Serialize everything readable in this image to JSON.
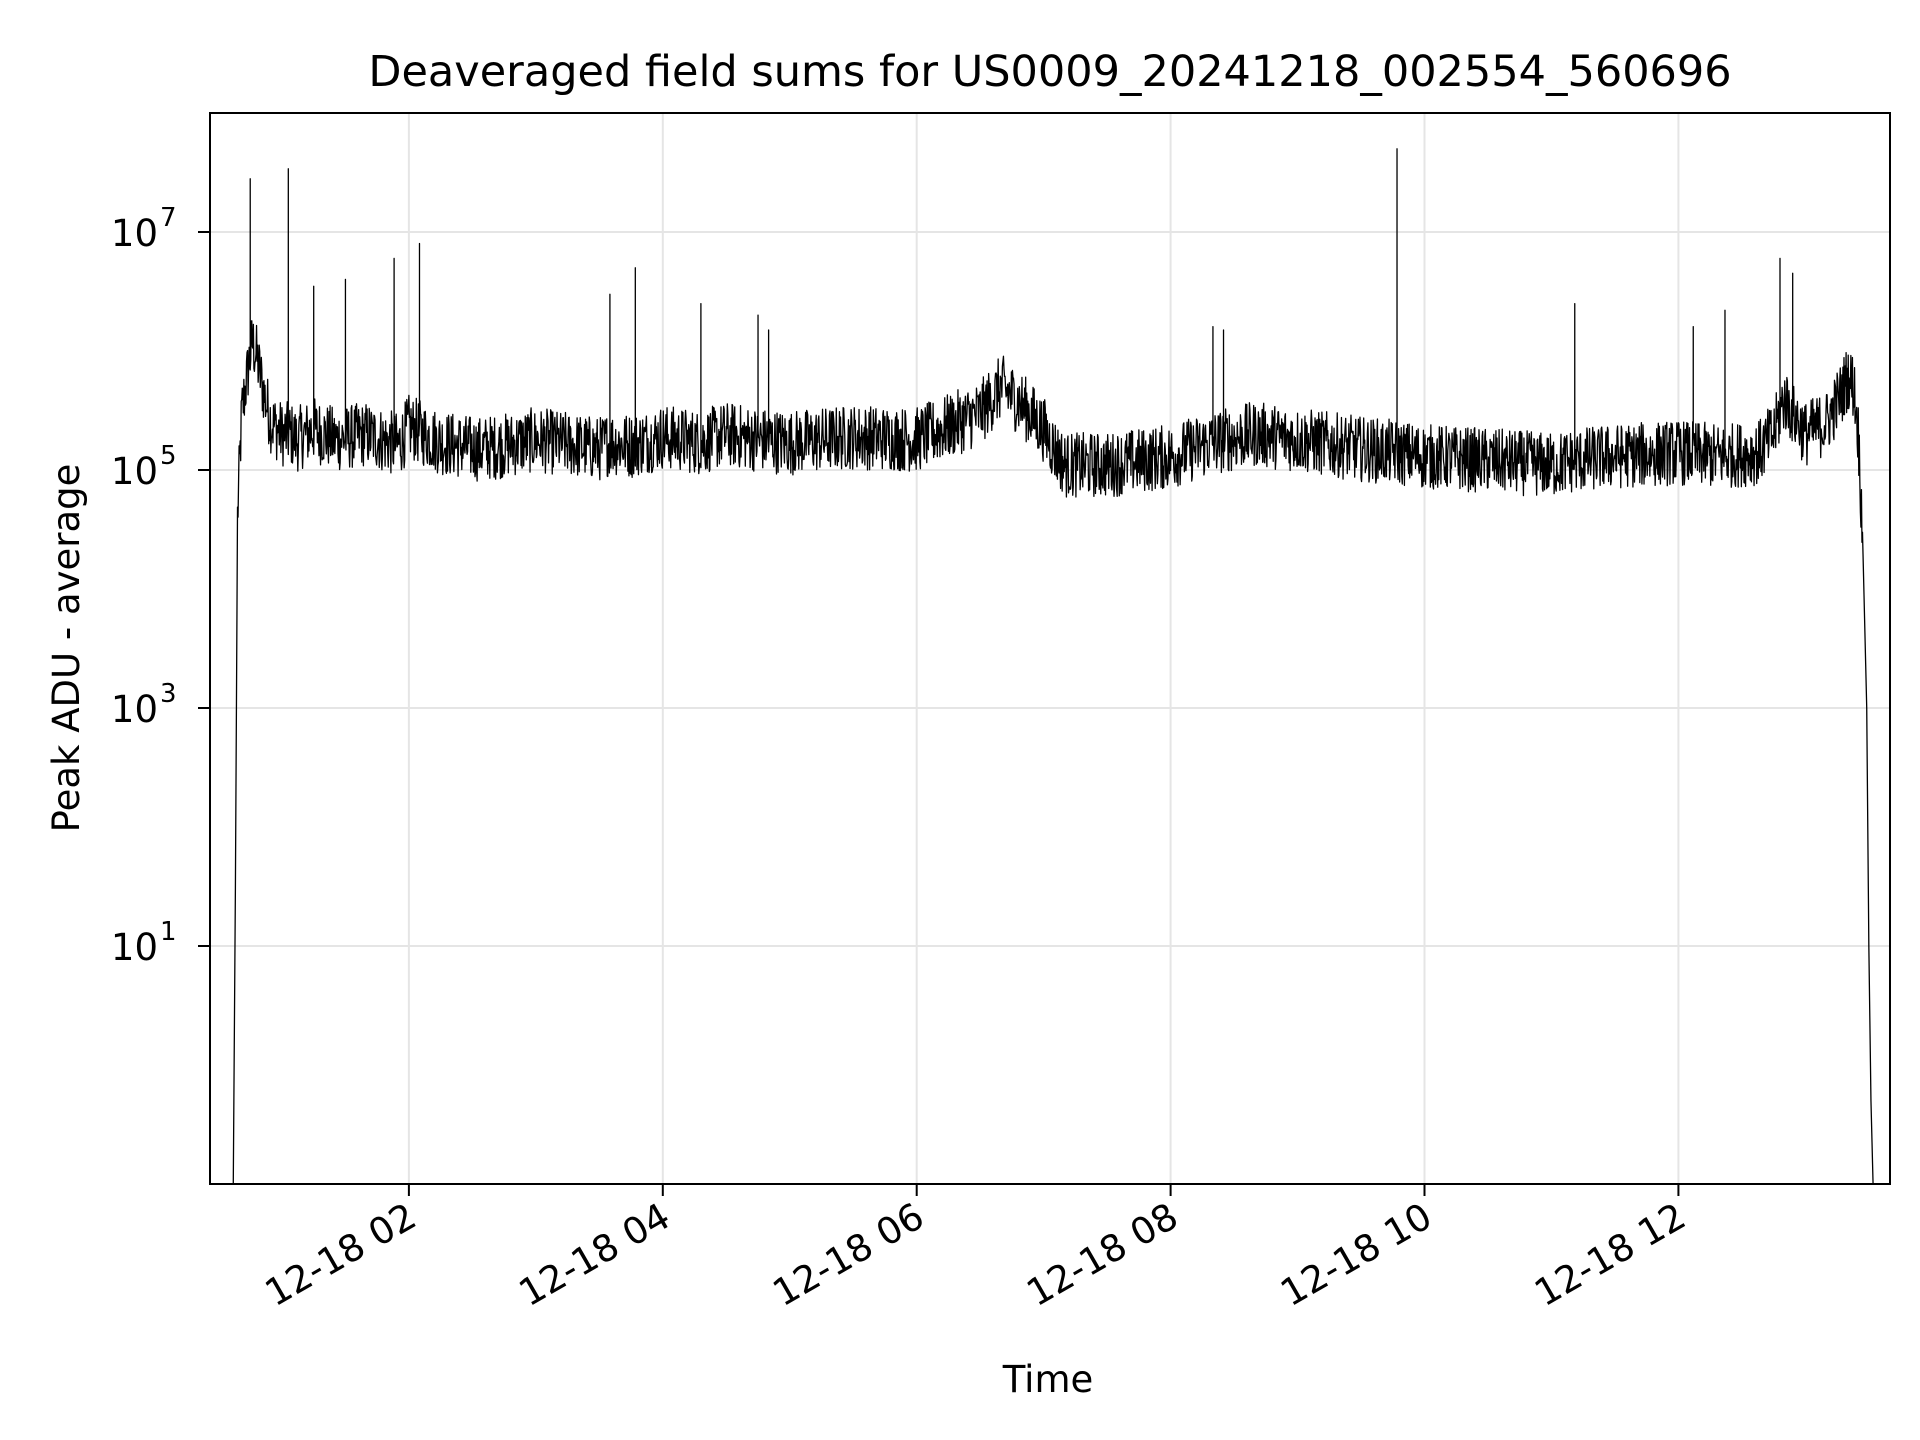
{
  "chart_data": {
    "type": "line",
    "title": "Deaveraged field sums for US0009_20241218_002554_560696",
    "xlabel": "Time",
    "ylabel": "Peak ADU - average",
    "yscale": "log",
    "xlim": [
      "2024-12-18 00:26",
      "2024-12-18 13:40"
    ],
    "ylim": [
      0.1,
      100000000
    ],
    "grid": true,
    "x_ticks": [
      {
        "value": "2024-12-18 02:00",
        "label": "12-18 02"
      },
      {
        "value": "2024-12-18 04:00",
        "label": "12-18 04"
      },
      {
        "value": "2024-12-18 06:00",
        "label": "12-18 06"
      },
      {
        "value": "2024-12-18 08:00",
        "label": "12-18 08"
      },
      {
        "value": "2024-12-18 10:00",
        "label": "12-18 10"
      },
      {
        "value": "2024-12-18 12:00",
        "label": "12-18 12"
      }
    ],
    "y_ticks": [
      {
        "value": 10,
        "base": "10",
        "exp": "1"
      },
      {
        "value": 1000,
        "base": "10",
        "exp": "3"
      },
      {
        "value": 100000,
        "base": "10",
        "exp": "5"
      },
      {
        "value": 10000000,
        "base": "10",
        "exp": "7"
      }
    ],
    "series": [
      {
        "color": "#000000",
        "x": [
          "2024-12-18 00:37",
          "2024-12-18 00:38",
          "2024-12-18 00:39",
          "2024-12-18 00:41",
          "2024-12-18 00:44",
          "2024-12-18 00:46",
          "2024-12-18 00:48",
          "2024-12-18 00:50",
          "2024-12-18 00:52",
          "2024-12-18 00:55",
          "2024-12-18 01:00",
          "2024-12-18 01:04",
          "2024-12-18 01:07",
          "2024-12-18 01:15",
          "2024-12-18 01:25",
          "2024-12-18 01:40",
          "2024-12-18 01:55",
          "2024-12-18 02:00",
          "2024-12-18 02:15",
          "2024-12-18 02:33",
          "2024-12-18 02:45",
          "2024-12-18 03:00",
          "2024-12-18 03:30",
          "2024-12-18 03:35",
          "2024-12-18 03:45",
          "2024-12-18 04:00",
          "2024-12-18 04:18",
          "2024-12-18 04:30",
          "2024-12-18 04:45",
          "2024-12-18 05:00",
          "2024-12-18 05:30",
          "2024-12-18 06:00",
          "2024-12-18 06:30",
          "2024-12-18 06:40",
          "2024-12-18 06:50",
          "2024-12-18 07:00",
          "2024-12-18 07:05",
          "2024-12-18 07:10",
          "2024-12-18 07:30",
          "2024-12-18 08:00",
          "2024-12-18 08:20",
          "2024-12-18 08:40",
          "2024-12-18 09:00",
          "2024-12-18 09:30",
          "2024-12-18 09:47",
          "2024-12-18 10:00",
          "2024-12-18 10:30",
          "2024-12-18 11:00",
          "2024-12-18 11:11",
          "2024-12-18 11:30",
          "2024-12-18 12:00",
          "2024-12-18 12:20",
          "2024-12-18 12:38",
          "2024-12-18 12:45",
          "2024-12-18 12:50",
          "2024-12-18 13:00",
          "2024-12-18 13:10",
          "2024-12-18 13:16",
          "2024-12-18 13:20",
          "2024-12-18 13:23",
          "2024-12-18 13:25",
          "2024-12-18 13:27",
          "2024-12-18 13:29",
          "2024-12-18 13:30",
          "2024-12-18 13:31",
          "2024-12-18 13:32"
        ],
        "y": [
          0.1,
          30,
          40000,
          300000,
          700000,
          1200000,
          900000,
          600000,
          400000,
          250000,
          200000,
          200000,
          180000,
          220000,
          180000,
          200000,
          160000,
          230000,
          170000,
          150000,
          160000,
          180000,
          150000,
          170000,
          160000,
          190000,
          170000,
          200000,
          180000,
          170000,
          190000,
          180000,
          300000,
          500000,
          350000,
          220000,
          150000,
          110000,
          110000,
          130000,
          170000,
          200000,
          180000,
          150000,
          140000,
          130000,
          120000,
          110000,
          120000,
          130000,
          140000,
          130000,
          140000,
          200000,
          400000,
          200000,
          250000,
          400000,
          600000,
          500000,
          200000,
          30000,
          1000,
          10,
          0.5,
          0.1
        ],
        "spikes": [
          {
            "x": "2024-12-18 00:45",
            "y": 28000000
          },
          {
            "x": "2024-12-18 01:03",
            "y": 34000000
          },
          {
            "x": "2024-12-18 01:15",
            "y": 3500000
          },
          {
            "x": "2024-12-18 01:30",
            "y": 4000000
          },
          {
            "x": "2024-12-18 01:53",
            "y": 6000000
          },
          {
            "x": "2024-12-18 02:05",
            "y": 8000000
          },
          {
            "x": "2024-12-18 03:35",
            "y": 3000000
          },
          {
            "x": "2024-12-18 03:47",
            "y": 5000000
          },
          {
            "x": "2024-12-18 04:18",
            "y": 2500000
          },
          {
            "x": "2024-12-18 04:45",
            "y": 2000000
          },
          {
            "x": "2024-12-18 04:50",
            "y": 1500000
          },
          {
            "x": "2024-12-18 08:20",
            "y": 1600000
          },
          {
            "x": "2024-12-18 08:25",
            "y": 1500000
          },
          {
            "x": "2024-12-18 09:47",
            "y": 50000000
          },
          {
            "x": "2024-12-18 11:11",
            "y": 2500000
          },
          {
            "x": "2024-12-18 12:07",
            "y": 1600000
          },
          {
            "x": "2024-12-18 12:22",
            "y": 2200000
          },
          {
            "x": "2024-12-18 12:48",
            "y": 6000000
          },
          {
            "x": "2024-12-18 12:54",
            "y": 4500000
          }
        ]
      }
    ]
  }
}
